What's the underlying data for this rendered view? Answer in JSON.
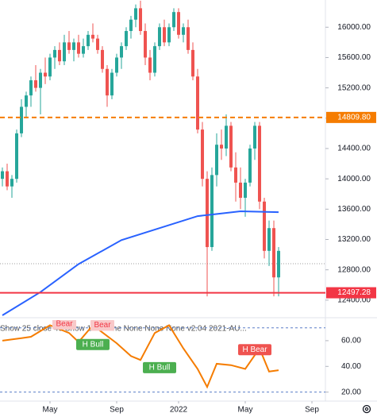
{
  "chart_data": [
    {
      "type": "candlestick",
      "up_color": "#26a69a",
      "down_color": "#ef5350",
      "xlim": [
        -0.5,
        67.83
      ],
      "xticks": [
        {
          "value": 10,
          "label": "May"
        },
        {
          "value": 24,
          "label": "Sep"
        },
        {
          "value": 37,
          "label": "2022"
        },
        {
          "value": 51,
          "label": "May"
        },
        {
          "value": 65,
          "label": "Sep"
        }
      ],
      "ylim": [
        12189,
        16359
      ],
      "yticks": [
        {
          "value": 12400,
          "label": "12400.00"
        },
        {
          "value": 12800,
          "label": "12800.00"
        },
        {
          "value": 13200,
          "label": "13200.00"
        },
        {
          "value": 13600,
          "label": "13600.00"
        },
        {
          "value": 14000,
          "label": "14000.00"
        },
        {
          "value": 14400,
          "label": "14400.00"
        },
        {
          "value": 14800,
          "label": "14800.00"
        },
        {
          "value": 15200,
          "label": "15200.00"
        },
        {
          "value": 15600,
          "label": "15600.00"
        },
        {
          "value": 16000,
          "label": "16000.00"
        }
      ],
      "candles": [
        [
          14000,
          14150,
          13900,
          14100
        ],
        [
          14100,
          14200,
          13850,
          13900
        ],
        [
          13900,
          14050,
          13750,
          14000
        ],
        [
          14000,
          14650,
          13950,
          14600
        ],
        [
          14600,
          15050,
          14550,
          14950
        ],
        [
          14950,
          15150,
          14800,
          15100
        ],
        [
          15100,
          15350,
          14950,
          15300
        ],
        [
          15300,
          15500,
          15150,
          15200
        ],
        [
          15200,
          15450,
          14850,
          15400
        ],
        [
          15400,
          15600,
          15250,
          15350
        ],
        [
          15350,
          15650,
          15300,
          15600
        ],
        [
          15600,
          15750,
          15450,
          15700
        ],
        [
          15700,
          15800,
          15500,
          15550
        ],
        [
          15550,
          15900,
          15500,
          15800
        ],
        [
          15800,
          15950,
          15650,
          15700
        ],
        [
          15700,
          15850,
          15550,
          15800
        ],
        [
          15800,
          15900,
          15600,
          15650
        ],
        [
          15650,
          15850,
          15600,
          15750
        ],
        [
          15750,
          15950,
          15700,
          15900
        ],
        [
          15900,
          16050,
          15800,
          15850
        ],
        [
          15850,
          15900,
          15650,
          15700
        ],
        [
          15700,
          15750,
          15400,
          15450
        ],
        [
          15450,
          15500,
          14950,
          15100
        ],
        [
          15100,
          15450,
          15050,
          15400
        ],
        [
          15400,
          15650,
          15350,
          15600
        ],
        [
          15600,
          15800,
          15450,
          15750
        ],
        [
          15750,
          16000,
          15700,
          15950
        ],
        [
          15950,
          16150,
          15850,
          16100
        ],
        [
          16100,
          16300,
          16000,
          16250
        ],
        [
          16250,
          16350,
          15900,
          15950
        ],
        [
          15950,
          16050,
          15500,
          15600
        ],
        [
          15600,
          15700,
          15300,
          15400
        ],
        [
          15400,
          15800,
          15350,
          15750
        ],
        [
          15750,
          16050,
          15700,
          16000
        ],
        [
          16000,
          16100,
          15750,
          15800
        ],
        [
          15800,
          16050,
          15750,
          16000
        ],
        [
          16000,
          16250,
          15950,
          16200
        ],
        [
          16200,
          16250,
          15850,
          15900
        ],
        [
          15900,
          16050,
          15800,
          16000
        ],
        [
          16000,
          16100,
          15650,
          15700
        ],
        [
          15700,
          15800,
          15300,
          15350
        ],
        [
          15350,
          15450,
          14600,
          14650
        ],
        [
          14650,
          14750,
          13900,
          14000
        ],
        [
          14000,
          14100,
          12450,
          13100
        ],
        [
          13100,
          14150,
          13050,
          14050
        ],
        [
          14050,
          14600,
          13900,
          14450
        ],
        [
          14450,
          14650,
          14250,
          14400
        ],
        [
          14400,
          14850,
          14300,
          14700
        ],
        [
          14700,
          14750,
          14100,
          14150
        ],
        [
          14150,
          14350,
          13700,
          13950
        ],
        [
          13950,
          14150,
          13600,
          13750
        ],
        [
          13750,
          14000,
          13500,
          13950
        ],
        [
          13950,
          14450,
          13900,
          14400
        ],
        [
          14400,
          14750,
          14250,
          14700
        ],
        [
          14700,
          14750,
          13600,
          13700
        ],
        [
          13700,
          13750,
          12950,
          13050
        ],
        [
          13050,
          13450,
          12850,
          13350
        ],
        [
          13350,
          13450,
          12450,
          12700
        ],
        [
          12700,
          13100,
          12450,
          13050
        ]
      ],
      "moving_average": {
        "color": "#2962ff",
        "x": [
          0,
          8,
          16,
          25,
          33,
          41,
          44,
          50,
          58
        ],
        "values": [
          12200,
          12506,
          12875,
          13192,
          13350,
          13508,
          13529,
          13572,
          13561
        ]
      },
      "levels": [
        {
          "value": 14809.8,
          "label": "14809.80",
          "color": "#f57c00",
          "style": "dashed"
        },
        {
          "value": 12497.28,
          "label": "12497.28",
          "color": "#f23645",
          "style": "solid"
        }
      ],
      "last_price": {
        "value": 12880,
        "color": "#9e9e9e"
      }
    },
    {
      "type": "line",
      "title": "Show 25 close 40 Show 100 None None None None v2.04 2021-AU...",
      "series": [
        {
          "color": "#f57c00",
          "x": [
            0,
            4,
            6,
            10,
            14,
            16,
            19,
            24,
            27,
            29,
            32,
            35,
            38,
            41,
            43,
            45,
            48,
            51,
            54,
            56,
            58
          ],
          "values": [
            60,
            62,
            63,
            72,
            66,
            59,
            72,
            58,
            48,
            45,
            66,
            72,
            54,
            38,
            24,
            42,
            41,
            38,
            54,
            36,
            37
          ]
        }
      ],
      "ylim": [
        13,
        76
      ],
      "yticks": [
        {
          "value": 20,
          "label": "20.00"
        },
        {
          "value": 40,
          "label": "40.00"
        },
        {
          "value": 60,
          "label": "60.00"
        }
      ],
      "levels": [
        20,
        70
      ],
      "annotations": [
        {
          "text": "Bear",
          "x": 13,
          "y": 73,
          "color": "#f8c9c9",
          "text_color": "#f23645"
        },
        {
          "text": "Bear",
          "x": 21,
          "y": 72,
          "color": "#f8c9c9",
          "text_color": "#f23645"
        },
        {
          "text": "H Bull",
          "x": 19,
          "y": 57,
          "color": "#4caf50",
          "text_color": "#ffffff"
        },
        {
          "text": "H Bull",
          "x": 33,
          "y": 39,
          "color": "#4caf50",
          "text_color": "#ffffff"
        },
        {
          "text": "H Bear",
          "x": 53,
          "y": 53,
          "color": "#ef5350",
          "text_color": "#ffffff"
        }
      ]
    }
  ]
}
